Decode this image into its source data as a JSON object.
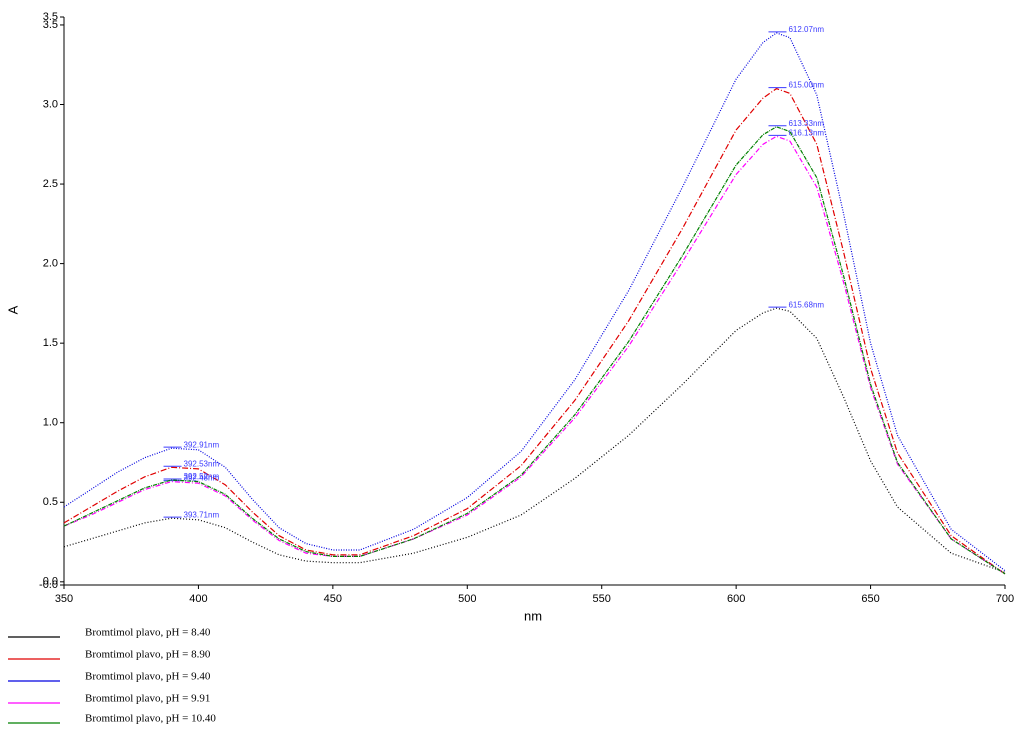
{
  "chart_data": {
    "type": "line",
    "x_label": "nm",
    "y_label": "A",
    "x": [
      350,
      360,
      370,
      380,
      390,
      400,
      410,
      420,
      430,
      440,
      450,
      460,
      480,
      500,
      520,
      540,
      560,
      580,
      600,
      610,
      615,
      620,
      630,
      640,
      650,
      660,
      680,
      700
    ],
    "xlim": [
      350,
      700
    ],
    "xticks": [
      350,
      400,
      450,
      500,
      550,
      600,
      650,
      700
    ],
    "ylim": [
      -0.02,
      3.55
    ],
    "yticks": [
      {
        "value": -0.02,
        "label": "-0.0"
      },
      {
        "value": 0,
        "label": "0.0"
      },
      {
        "value": 0.5,
        "label": "0.5"
      },
      {
        "value": 1,
        "label": "1.0"
      },
      {
        "value": 1.5,
        "label": "1.5"
      },
      {
        "value": 2,
        "label": "2.0"
      },
      {
        "value": 2.5,
        "label": "2.5"
      },
      {
        "value": 3,
        "label": "3.0"
      },
      {
        "value": 3.5,
        "label": "3.5"
      },
      {
        "value": 3.55,
        "label": "3.5"
      }
    ],
    "series": [
      {
        "name": "Bromtimol plavo, pH = 8.40",
        "color": "#000000",
        "peak_labels": [
          "393.71nm",
          "615.68nm"
        ],
        "values": [
          0.22,
          0.27,
          0.32,
          0.37,
          0.4,
          0.39,
          0.34,
          0.25,
          0.17,
          0.13,
          0.12,
          0.12,
          0.18,
          0.28,
          0.42,
          0.65,
          0.92,
          1.24,
          1.58,
          1.69,
          1.72,
          1.7,
          1.53,
          1.16,
          0.76,
          0.47,
          0.18,
          0.06
        ]
      },
      {
        "name": "Bromtimol plavo, pH = 8.90",
        "color": "#e00000",
        "peak_labels": [
          "392.53nm",
          "615.00nm"
        ],
        "values": [
          0.37,
          0.47,
          0.57,
          0.66,
          0.72,
          0.71,
          0.61,
          0.44,
          0.29,
          0.2,
          0.17,
          0.17,
          0.29,
          0.46,
          0.73,
          1.14,
          1.64,
          2.22,
          2.84,
          3.04,
          3.1,
          3.07,
          2.75,
          2.07,
          1.34,
          0.81,
          0.29,
          0.05
        ]
      },
      {
        "name": "Bromtimol plavo, pH = 9.40",
        "color": "#0000e0",
        "peak_labels": [
          "392.91nm",
          "612.07nm"
        ],
        "values": [
          0.47,
          0.58,
          0.69,
          0.78,
          0.84,
          0.83,
          0.72,
          0.52,
          0.34,
          0.24,
          0.2,
          0.2,
          0.33,
          0.53,
          0.82,
          1.27,
          1.83,
          2.48,
          3.16,
          3.39,
          3.45,
          3.42,
          3.06,
          2.31,
          1.5,
          0.92,
          0.33,
          0.07
        ]
      },
      {
        "name": "Bromtimol plavo, pH = 9.91",
        "color": "#ff00ff",
        "peak_labels": [
          "392.48nm",
          "616.13nm"
        ],
        "values": [
          0.35,
          0.42,
          0.5,
          0.58,
          0.63,
          0.62,
          0.54,
          0.39,
          0.26,
          0.18,
          0.16,
          0.16,
          0.27,
          0.42,
          0.66,
          1.03,
          1.48,
          2.01,
          2.56,
          2.75,
          2.8,
          2.77,
          2.48,
          1.88,
          1.22,
          0.74,
          0.27,
          0.05
        ]
      },
      {
        "name": "Bromtimol plavo, pH = 10.40",
        "color": "#008000",
        "peak_labels": [
          "392.52nm",
          "613.33nm"
        ],
        "values": [
          0.35,
          0.43,
          0.51,
          0.59,
          0.64,
          0.63,
          0.55,
          0.4,
          0.27,
          0.19,
          0.16,
          0.16,
          0.27,
          0.43,
          0.67,
          1.05,
          1.51,
          2.05,
          2.62,
          2.81,
          2.86,
          2.83,
          2.54,
          1.92,
          1.24,
          0.75,
          0.27,
          0.05
        ]
      }
    ]
  }
}
